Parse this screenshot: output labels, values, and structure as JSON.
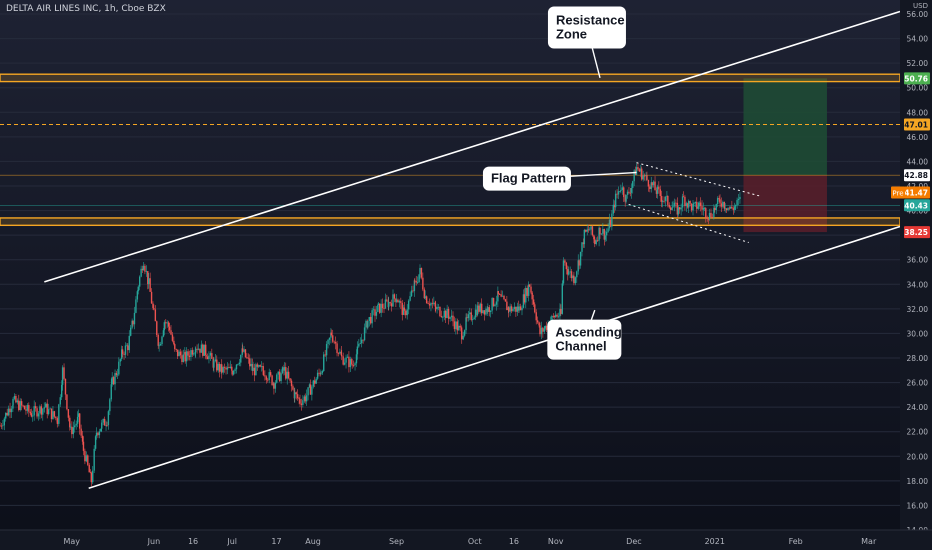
{
  "title": "DELTA AIR LINES INC, 1h, Cboe BZX",
  "currency": "USD",
  "colors": {
    "bg_top": "#1e2233",
    "bg_bottom": "#0c0f19",
    "up": "#26a69a",
    "down": "#ef5350",
    "zone": "#f5a623",
    "line": "#ffffff",
    "axis_text": "#b2b5be",
    "target_fill": "#1f4d35",
    "stop_fill": "#5a1f2a"
  },
  "chart_data": {
    "type": "candlestick",
    "title": "DELTA AIR LINES INC, 1h, Cboe BZX",
    "ylim": [
      14,
      56
    ],
    "y_ticks": [
      14,
      16,
      18,
      20,
      22,
      24,
      26,
      28,
      30,
      32,
      34,
      36,
      38,
      40,
      42,
      44,
      46,
      48,
      50,
      52,
      54,
      56
    ],
    "y_tick_labels": [
      "14.00",
      "16.00",
      "18.00",
      "20.00",
      "22.00",
      "24.00",
      "26.00",
      "28.00",
      "30.00",
      "32.00",
      "34.00",
      "36.00",
      "38.00",
      "40.00",
      "42.00",
      "44.00",
      "46.00",
      "48.00",
      "50.00",
      "52.00",
      "54.00",
      "56.00"
    ],
    "x_ticks": [
      {
        "label": "May",
        "t": 0.5
      },
      {
        "label": "Jun",
        "t": 32
      },
      {
        "label": "16",
        "t": 47
      },
      {
        "label": "Jul",
        "t": 62
      },
      {
        "label": "17",
        "t": 79
      },
      {
        "label": "Aug",
        "t": 93
      },
      {
        "label": "Sep",
        "t": 125
      },
      {
        "label": "Oct",
        "t": 155
      },
      {
        "label": "16",
        "t": 170
      },
      {
        "label": "Nov",
        "t": 186
      },
      {
        "label": "Dec",
        "t": 216
      },
      {
        "label": "2021",
        "t": 247
      },
      {
        "label": "Feb",
        "t": 278
      },
      {
        "label": "Mar",
        "t": 306
      }
    ],
    "xlim": [
      -27,
      318
    ],
    "price_path": [
      [
        -27,
        22.5
      ],
      [
        -22,
        24.5
      ],
      [
        -15,
        23.5
      ],
      [
        -10,
        24
      ],
      [
        -5,
        23
      ],
      [
        -3,
        27
      ],
      [
        0,
        22
      ],
      [
        3,
        23
      ],
      [
        5,
        20.5
      ],
      [
        8,
        18
      ],
      [
        10,
        22
      ],
      [
        12,
        22.5
      ],
      [
        14,
        23
      ],
      [
        16,
        26
      ],
      [
        18,
        27
      ],
      [
        20,
        28.5
      ],
      [
        22,
        29
      ],
      [
        24,
        31
      ],
      [
        26,
        34
      ],
      [
        28,
        36
      ],
      [
        30,
        34
      ],
      [
        32,
        31.5
      ],
      [
        34,
        29
      ],
      [
        36,
        31
      ],
      [
        38,
        30.5
      ],
      [
        40,
        28.5
      ],
      [
        44,
        28
      ],
      [
        48,
        29
      ],
      [
        52,
        28.5
      ],
      [
        55,
        27.5
      ],
      [
        58,
        27
      ],
      [
        62,
        27
      ],
      [
        66,
        28.5
      ],
      [
        70,
        27
      ],
      [
        74,
        27
      ],
      [
        78,
        26
      ],
      [
        82,
        27
      ],
      [
        86,
        25
      ],
      [
        88,
        24.5
      ],
      [
        90,
        24.8
      ],
      [
        92,
        25.5
      ],
      [
        96,
        27
      ],
      [
        100,
        30
      ],
      [
        104,
        28
      ],
      [
        108,
        27.5
      ],
      [
        110,
        28.5
      ],
      [
        114,
        31
      ],
      [
        118,
        32
      ],
      [
        122,
        32.5
      ],
      [
        125,
        33
      ],
      [
        128,
        31.5
      ],
      [
        132,
        34
      ],
      [
        134,
        35
      ],
      [
        136,
        33
      ],
      [
        140,
        32
      ],
      [
        145,
        31.5
      ],
      [
        150,
        30
      ],
      [
        152,
        31
      ],
      [
        156,
        32
      ],
      [
        160,
        32
      ],
      [
        164,
        33
      ],
      [
        168,
        32
      ],
      [
        172,
        32
      ],
      [
        174,
        33
      ],
      [
        176,
        34
      ],
      [
        177,
        33
      ],
      [
        178,
        32
      ],
      [
        180,
        30
      ],
      [
        182,
        30.5
      ],
      [
        184,
        31
      ],
      [
        186,
        31.5
      ],
      [
        188,
        31.5
      ],
      [
        189,
        36
      ],
      [
        191,
        35
      ],
      [
        193,
        34.5
      ],
      [
        195,
        36
      ],
      [
        197,
        38
      ],
      [
        199,
        38.5
      ],
      [
        201,
        37.5
      ],
      [
        203,
        38.5
      ],
      [
        205,
        38
      ],
      [
        207,
        39
      ],
      [
        209,
        41
      ],
      [
        211,
        42
      ],
      [
        213,
        41
      ],
      [
        215,
        42
      ],
      [
        217,
        43.5
      ],
      [
        219,
        43
      ],
      [
        221,
        42.5
      ],
      [
        223,
        42
      ],
      [
        225,
        41.5
      ],
      [
        227,
        41
      ],
      [
        229,
        40.7
      ],
      [
        231,
        40.3
      ],
      [
        233,
        40
      ],
      [
        235,
        41
      ],
      [
        237,
        40.5
      ],
      [
        239,
        40.2
      ],
      [
        241,
        40.5
      ],
      [
        243,
        40
      ],
      [
        245,
        39.6
      ],
      [
        247,
        40.2
      ],
      [
        249,
        40.8
      ],
      [
        251,
        40.5
      ],
      [
        253,
        40.1
      ],
      [
        255,
        40.4
      ],
      [
        257,
        40.9
      ]
    ],
    "price_zones": [
      {
        "low": 50.5,
        "high": 51.1
      },
      {
        "low": 38.8,
        "high": 39.4
      }
    ],
    "dashed_levels": [
      {
        "price": 47.01,
        "label": "47.01",
        "color": "#f5a623",
        "text_color": "#131722"
      }
    ],
    "solid_levels": [
      {
        "price": 42.88,
        "color": "#f5a623"
      },
      {
        "price": 40.43,
        "color": "#26a69a"
      }
    ],
    "price_labels": [
      {
        "price": 50.76,
        "label": "50.76",
        "bg": "#4caf50",
        "fg": "#ffffff"
      },
      {
        "price": 47.01,
        "label": "47.01",
        "bg": "#f5a623",
        "fg": "#131722"
      },
      {
        "price": 42.88,
        "label": "42.88",
        "bg": "#ffffff",
        "fg": "#131722"
      },
      {
        "price": 41.47,
        "label": "41.47",
        "bg": "#f57c00",
        "fg": "#ffffff"
      },
      {
        "price": 40.43,
        "label": "40.43",
        "bg": "#26a69a",
        "fg": "#ffffff"
      },
      {
        "price": 38.25,
        "label": "38.25",
        "bg": "#e53935",
        "fg": "#ffffff"
      }
    ],
    "pre_tag": {
      "label": "Pre",
      "price": 41.47
    },
    "trend_lines": [
      {
        "name": "channel-upper",
        "t1": -10,
        "p1": 34.2,
        "t2": 318,
        "p2": 56.2,
        "dash": false
      },
      {
        "name": "channel-lower",
        "t1": 7,
        "p1": 17.4,
        "t2": 318,
        "p2": 38.7,
        "dash": false
      },
      {
        "name": "flag-upper",
        "t1": 217,
        "p1": 43.9,
        "t2": 264,
        "p2": 41.2,
        "dash": true
      },
      {
        "name": "flag-lower",
        "t1": 214,
        "p1": 40.5,
        "t2": 260,
        "p2": 37.4,
        "dash": true
      }
    ],
    "position": {
      "t1": 258,
      "t2": 290,
      "entry": 42.88,
      "target": 50.76,
      "stop": 38.25
    },
    "annotations": [
      {
        "name": "resistance-zone",
        "lines": [
          "Resistance",
          "Zone"
        ],
        "t": 198,
        "p": 54.9,
        "w": 78,
        "h": 42,
        "tail_t": 203,
        "tail_p": 50.8
      },
      {
        "name": "flag-pattern",
        "lines": [
          "Flag Pattern"
        ],
        "t": 175,
        "p": 42.6,
        "w": 88,
        "h": 24,
        "tail_t": 217,
        "tail_p": 43.1
      },
      {
        "name": "ascending-channel",
        "lines": [
          "Ascending",
          "Channel"
        ],
        "t": 197,
        "p": 29.5,
        "w": 74,
        "h": 40,
        "tail_t": 201,
        "tail_p": 31.9
      }
    ]
  }
}
